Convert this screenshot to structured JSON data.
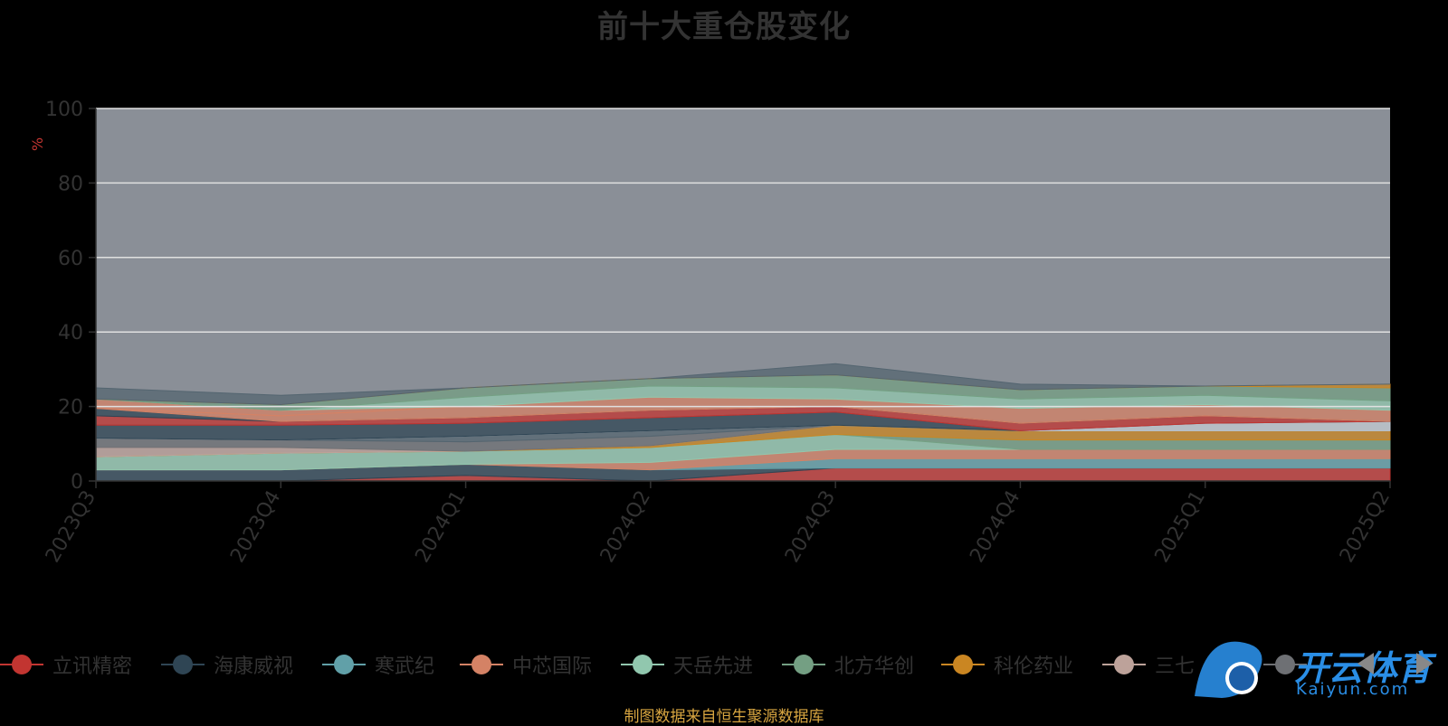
{
  "chart_data": {
    "type": "area",
    "title": "前十大重仓股变化",
    "ylabel": "%",
    "xlabel": "",
    "ylim": [
      0,
      100
    ],
    "yticks": [
      0,
      20,
      40,
      60,
      80,
      100
    ],
    "grid": true,
    "stacked": true,
    "legend_position": "bottom",
    "categories": [
      "2023Q3",
      "2023Q4",
      "2024Q1",
      "2024Q2",
      "2024Q3",
      "2024Q4",
      "2025Q1",
      "2025Q2"
    ],
    "series": [
      {
        "name": "立讯精密",
        "color": "#c23531",
        "values": [
          0.0,
          0.0,
          1.5,
          0.0,
          3.5,
          3.5,
          3.5,
          3.5
        ]
      },
      {
        "name": "海康威视",
        "color": "#2f4554",
        "values": [
          3.0,
          3.0,
          3.0,
          3.0,
          0.0,
          0.0,
          0.0,
          0.0
        ]
      },
      {
        "name": "寒武纪",
        "color": "#61a0a8",
        "values": [
          0.0,
          0.0,
          0.0,
          0.0,
          2.5,
          2.5,
          2.5,
          2.5
        ]
      },
      {
        "name": "中芯国际",
        "color": "#d48265",
        "values": [
          0.0,
          0.0,
          0.0,
          2.0,
          2.5,
          2.5,
          2.5,
          2.5
        ]
      },
      {
        "name": "天岳先进",
        "color": "#91c7ae",
        "values": [
          3.5,
          4.5,
          3.5,
          4.0,
          4.0,
          0.0,
          0.0,
          0.0
        ]
      },
      {
        "name": "北方华创",
        "color": "#749f83",
        "values": [
          0.0,
          0.0,
          0.0,
          0.0,
          0.0,
          2.5,
          2.5,
          2.5
        ]
      },
      {
        "name": "科伦药业",
        "color": "#ca8622",
        "values": [
          0.0,
          0.0,
          0.0,
          0.5,
          2.5,
          2.5,
          2.5,
          2.5
        ]
      },
      {
        "name": "三七互娱",
        "color": "#bda29a",
        "values": [
          2.5,
          1.5,
          0.0,
          0.0,
          0.0,
          0.0,
          0.0,
          0.0
        ]
      },
      {
        "name": "",
        "color": "#6e7074",
        "values": [
          2.5,
          2.0,
          2.5,
          2.5,
          0.0,
          0.0,
          0.0,
          0.0
        ]
      },
      {
        "name": "",
        "color": "#546570",
        "values": [
          0.0,
          0.0,
          1.5,
          1.5,
          0.0,
          0.0,
          0.0,
          0.0
        ]
      },
      {
        "name": "",
        "color": "#c4ccd3",
        "values": [
          0.0,
          0.0,
          0.0,
          0.0,
          0.0,
          0.0,
          2.0,
          2.5
        ]
      },
      {
        "name": "",
        "color": "#2f4554",
        "values": [
          3.5,
          4.0,
          3.5,
          3.5,
          3.5,
          0.0,
          0.0,
          0.0
        ]
      },
      {
        "name": "",
        "color": "#c23531",
        "values": [
          2.5,
          1.0,
          1.5,
          2.0,
          1.5,
          2.0,
          2.0,
          0.0
        ]
      },
      {
        "name": "",
        "color": "#2f4554",
        "values": [
          2.0,
          0.0,
          0.0,
          0.0,
          0.0,
          0.0,
          0.0,
          0.0
        ]
      },
      {
        "name": "",
        "color": "#d48265",
        "values": [
          0.0,
          1.5,
          3.0,
          3.5,
          2.0,
          4.0,
          3.0,
          3.0
        ]
      },
      {
        "name": "",
        "color": "#d48265",
        "values": [
          2.5,
          1.5,
          0.0,
          0.0,
          0.0,
          0.0,
          0.0,
          0.0
        ]
      },
      {
        "name": "",
        "color": "#91c7ae",
        "values": [
          0.0,
          0.0,
          2.5,
          3.0,
          3.0,
          2.5,
          2.5,
          2.5
        ]
      },
      {
        "name": "",
        "color": "#749f83",
        "values": [
          0.0,
          1.5,
          2.5,
          2.0,
          3.5,
          2.5,
          2.5,
          3.5
        ]
      },
      {
        "name": "",
        "color": "#ca8622",
        "values": [
          0.0,
          0.0,
          0.0,
          0.0,
          0.0,
          0.0,
          0.0,
          1.0
        ]
      },
      {
        "name": "",
        "color": "#546570",
        "values": [
          3.0,
          2.5,
          0.0,
          0.0,
          3.0,
          1.5,
          0.0,
          0.0
        ]
      }
    ],
    "total_top": 100
  },
  "legend": {
    "items": [
      {
        "label": "立讯精密",
        "color": "#c23531"
      },
      {
        "label": "海康威视",
        "color": "#2f4554"
      },
      {
        "label": "寒武纪",
        "color": "#61a0a8"
      },
      {
        "label": "中芯国际",
        "color": "#d48265"
      },
      {
        "label": "天岳先进",
        "color": "#91c7ae"
      },
      {
        "label": "北方华创",
        "color": "#749f83"
      },
      {
        "label": "科伦药业",
        "color": "#ca8622"
      },
      {
        "label": "三七",
        "color": "#bda29a"
      },
      {
        "label": "",
        "color": "#6e7074"
      }
    ]
  },
  "colors": {
    "remainder": "#8a8f97",
    "axis": "#333333",
    "grid": "#e0e0e0",
    "tick_text": "#333333"
  },
  "footnote": "制图数据来自恒生聚源数据库",
  "watermark": {
    "text": "开云体育",
    "sub": "Kaiyun.com"
  }
}
